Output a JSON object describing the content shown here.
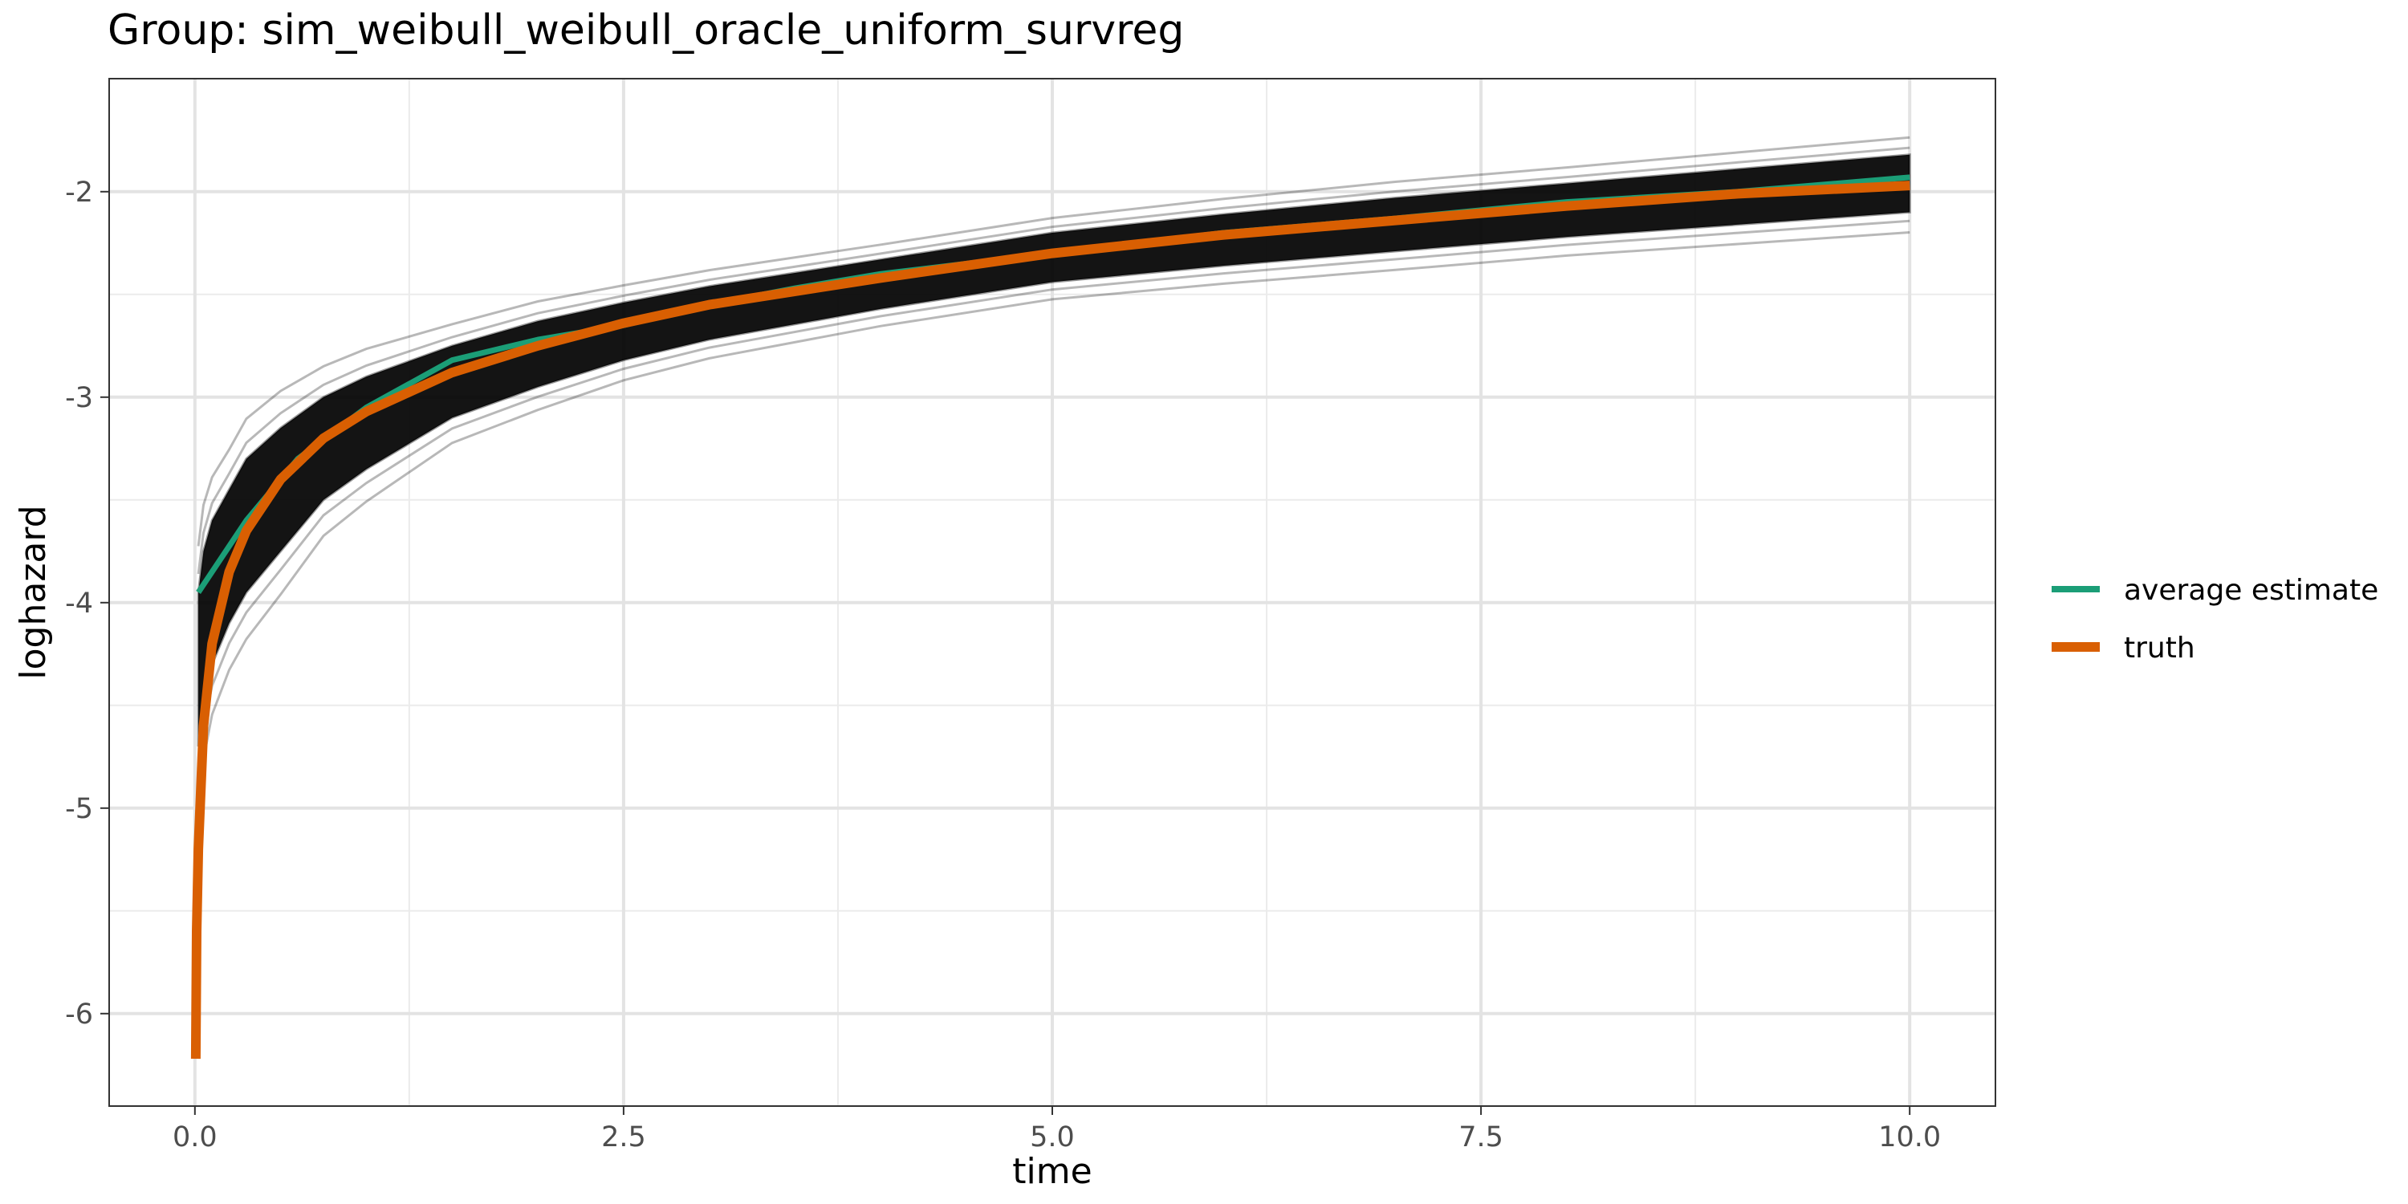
{
  "chart_data": {
    "type": "line",
    "title": "Group: sim_weibull_weibull_oracle_uniform_survreg",
    "xlabel": "time",
    "ylabel": "loghazard",
    "xlim": [
      -0.5,
      10.5
    ],
    "ylim": [
      -6.45,
      -1.45
    ],
    "x_ticks": [
      0.0,
      2.5,
      5.0,
      7.5,
      10.0
    ],
    "x_tick_labels": [
      "0.0",
      "2.5",
      "5.0",
      "7.5",
      "10.0"
    ],
    "y_ticks": [
      -6,
      -5,
      -4,
      -3,
      -2
    ],
    "y_tick_labels": [
      "-6",
      "-5",
      "-4",
      "-3",
      "-2"
    ],
    "grid": true,
    "legend": {
      "position": "right",
      "entries": [
        {
          "label": "average estimate",
          "color": "#1B9E77"
        },
        {
          "label": "truth",
          "color": "#D95F02"
        }
      ]
    },
    "series": [
      {
        "name": "average estimate",
        "color": "#1B9E77",
        "x": [
          0.02,
          0.3,
          0.6,
          1.0,
          1.5,
          2.0,
          2.5,
          3.0,
          3.5,
          4.0,
          5.0,
          6.0,
          7.0,
          8.0,
          9.0,
          10.0
        ],
        "y": [
          -3.95,
          -3.6,
          -3.3,
          -3.05,
          -2.82,
          -2.72,
          -2.65,
          -2.55,
          -2.47,
          -2.4,
          -2.3,
          -2.2,
          -2.13,
          -2.05,
          -2.0,
          -1.93
        ]
      },
      {
        "name": "truth",
        "color": "#D95F02",
        "x": [
          0.005,
          0.01,
          0.02,
          0.05,
          0.1,
          0.2,
          0.3,
          0.5,
          0.75,
          1.0,
          1.5,
          2.0,
          2.5,
          3.0,
          4.0,
          5.0,
          6.0,
          7.0,
          8.0,
          9.0,
          10.0
        ],
        "y": [
          -6.22,
          -5.6,
          -5.2,
          -4.6,
          -4.2,
          -3.85,
          -3.65,
          -3.4,
          -3.2,
          -3.07,
          -2.88,
          -2.75,
          -2.64,
          -2.55,
          -2.42,
          -2.3,
          -2.21,
          -2.14,
          -2.07,
          -2.01,
          -1.97
        ]
      }
    ],
    "simulation_band": {
      "color": "#000000",
      "x": [
        0.02,
        0.05,
        0.1,
        0.2,
        0.3,
        0.5,
        0.75,
        1.0,
        1.5,
        2.0,
        2.5,
        3.0,
        4.0,
        5.0,
        6.0,
        7.0,
        8.0,
        9.0,
        10.0
      ],
      "y_upper": [
        -3.95,
        -3.75,
        -3.6,
        -3.45,
        -3.3,
        -3.15,
        -3.0,
        -2.9,
        -2.75,
        -2.63,
        -2.54,
        -2.46,
        -2.33,
        -2.2,
        -2.11,
        -2.03,
        -1.96,
        -1.89,
        -1.82
      ],
      "y_lower": [
        -4.7,
        -4.5,
        -4.3,
        -4.1,
        -3.95,
        -3.75,
        -3.5,
        -3.35,
        -3.1,
        -2.95,
        -2.82,
        -2.72,
        -2.57,
        -2.44,
        -2.36,
        -2.29,
        -2.22,
        -2.16,
        -2.1
      ]
    }
  }
}
